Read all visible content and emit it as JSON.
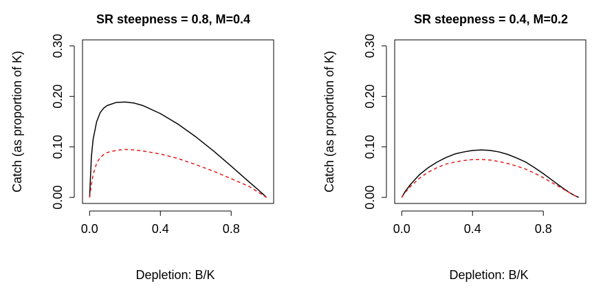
{
  "chart_data": [
    {
      "type": "line",
      "title": "SR steepness = 0.8, M=0.4",
      "xlabel": "Depletion: B/K",
      "ylabel": "Catch (as proportion of K)",
      "xlim": [
        0,
        1
      ],
      "ylim": [
        0,
        0.3
      ],
      "x_ticks": [
        0.0,
        0.4,
        0.8
      ],
      "x_tick_labels": [
        "0.0",
        "0.4",
        "0.8"
      ],
      "y_ticks": [
        0.0,
        0.1,
        0.2,
        0.3
      ],
      "y_tick_labels": [
        "0.00",
        "0.10",
        "0.20",
        "0.30"
      ],
      "grid": false,
      "series": [
        {
          "color": "#000000",
          "style": "solid",
          "x": [
            0.0,
            0.01,
            0.02,
            0.04,
            0.06,
            0.08,
            0.1,
            0.15,
            0.2,
            0.25,
            0.3,
            0.4,
            0.5,
            0.6,
            0.7,
            0.8,
            0.9,
            0.95,
            1.0
          ],
          "y": [
            0.0,
            0.08,
            0.115,
            0.15,
            0.168,
            0.177,
            0.182,
            0.188,
            0.189,
            0.187,
            0.182,
            0.166,
            0.145,
            0.12,
            0.092,
            0.062,
            0.031,
            0.016,
            0.0
          ]
        },
        {
          "color": "#e41a1c",
          "style": "dashed",
          "x": [
            0.0,
            0.01,
            0.02,
            0.04,
            0.06,
            0.08,
            0.1,
            0.15,
            0.2,
            0.25,
            0.3,
            0.4,
            0.5,
            0.6,
            0.7,
            0.8,
            0.9,
            0.95,
            1.0
          ],
          "y": [
            0.0,
            0.025,
            0.045,
            0.068,
            0.079,
            0.085,
            0.089,
            0.093,
            0.095,
            0.094,
            0.092,
            0.086,
            0.077,
            0.065,
            0.052,
            0.037,
            0.022,
            0.011,
            0.0
          ]
        }
      ]
    },
    {
      "type": "line",
      "title": "SR steepness = 0.4, M=0.2",
      "xlabel": "Depletion: B/K",
      "ylabel": "Catch (as proportion of K)",
      "xlim": [
        0,
        1
      ],
      "ylim": [
        0,
        0.3
      ],
      "x_ticks": [
        0.0,
        0.4,
        0.8
      ],
      "x_tick_labels": [
        "0.0",
        "0.4",
        "0.8"
      ],
      "y_ticks": [
        0.0,
        0.1,
        0.2,
        0.3
      ],
      "y_tick_labels": [
        "0.00",
        "0.10",
        "0.20",
        "0.30"
      ],
      "grid": false,
      "series": [
        {
          "color": "#000000",
          "style": "solid",
          "x": [
            0.0,
            0.02,
            0.05,
            0.1,
            0.15,
            0.2,
            0.25,
            0.3,
            0.35,
            0.4,
            0.45,
            0.5,
            0.55,
            0.6,
            0.65,
            0.7,
            0.75,
            0.8,
            0.85,
            0.9,
            0.95,
            0.98,
            1.0
          ],
          "y": [
            0.0,
            0.012,
            0.026,
            0.045,
            0.059,
            0.07,
            0.079,
            0.086,
            0.09,
            0.093,
            0.094,
            0.093,
            0.09,
            0.085,
            0.078,
            0.07,
            0.059,
            0.047,
            0.034,
            0.021,
            0.009,
            0.003,
            0.0
          ]
        },
        {
          "color": "#e41a1c",
          "style": "dashed",
          "x": [
            0.0,
            0.02,
            0.05,
            0.1,
            0.15,
            0.2,
            0.25,
            0.3,
            0.35,
            0.4,
            0.45,
            0.5,
            0.55,
            0.6,
            0.65,
            0.7,
            0.75,
            0.8,
            0.85,
            0.9,
            0.95,
            0.98,
            1.0
          ],
          "y": [
            0.0,
            0.01,
            0.022,
            0.038,
            0.05,
            0.059,
            0.066,
            0.07,
            0.073,
            0.075,
            0.075,
            0.074,
            0.071,
            0.067,
            0.062,
            0.056,
            0.048,
            0.039,
            0.029,
            0.019,
            0.009,
            0.003,
            0.0
          ]
        }
      ]
    }
  ]
}
